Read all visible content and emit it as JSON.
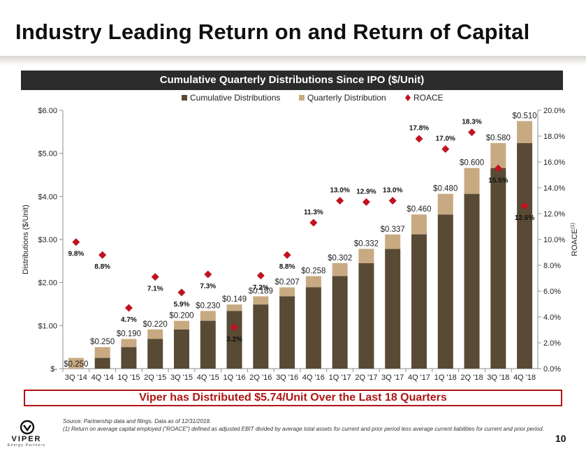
{
  "page": {
    "title": "Industry Leading Return on and Return of Capital",
    "banner": "Cumulative Quarterly Distributions Since IPO ($/Unit)",
    "callout": "Viper has Distributed $5.74/Unit Over the Last 18 Quarters",
    "footnote_source": "Source: Partnership data and filings. Data as of 12/31/2018.",
    "footnote_1": "(1)     Return on average capital employed (“ROACE”) defined as adjusted EBIT divided by average total assets for current and prior period less average current liabilities for current and prior period.",
    "page_number": "10",
    "logo_text": "VIPER",
    "logo_subtext": "Energy Partners"
  },
  "colors": {
    "cumulative": "#584a34",
    "quarterly": "#c8aa82",
    "roace": "#c0121f",
    "banner": "#2b2b2b",
    "callout": "#b01515"
  },
  "chart_data": {
    "type": "bar",
    "categories": [
      "3Q '14",
      "4Q '14",
      "1Q '15",
      "2Q '15",
      "3Q '15",
      "4Q '15",
      "1Q '16",
      "2Q '16",
      "3Q '16",
      "4Q '16",
      "1Q '17",
      "2Q '17",
      "3Q '17",
      "4Q '17",
      "1Q '18",
      "2Q '18",
      "3Q '18",
      "4Q '18"
    ],
    "series": [
      {
        "name": "Cumulative Distributions",
        "values": [
          0,
          0.25,
          0.5,
          0.69,
          0.91,
          1.11,
          1.34,
          1.49,
          1.68,
          1.89,
          2.15,
          2.45,
          2.78,
          3.12,
          3.58,
          4.06,
          4.66,
          5.24
        ]
      },
      {
        "name": "Quarterly Distribution",
        "values": [
          0.25,
          0.25,
          0.19,
          0.22,
          0.2,
          0.23,
          0.149,
          0.189,
          0.207,
          0.258,
          0.302,
          0.332,
          0.337,
          0.46,
          0.48,
          0.6,
          0.58,
          0.51
        ]
      },
      {
        "name": "ROACE",
        "axis": "right",
        "values": [
          9.8,
          8.8,
          4.7,
          7.1,
          5.9,
          7.3,
          3.2,
          7.2,
          8.8,
          11.3,
          13.0,
          12.9,
          13.0,
          17.8,
          17.0,
          18.3,
          15.5,
          12.6
        ]
      }
    ],
    "bar_labels": [
      "$0.250",
      "$0.250",
      "$0.190",
      "$0.220",
      "$0.200",
      "$0.230",
      "$0.149",
      "$0.189",
      "$0.207",
      "$0.258",
      "$0.302",
      "$0.332",
      "$0.337",
      "$0.460",
      "$0.480",
      "$0.600",
      "$0.580",
      "$0.510"
    ],
    "roace_labels": [
      "9.8%",
      "8.8%",
      "4.7%",
      "7.1%",
      "5.9%",
      "7.3%",
      "3.2%",
      "7.2%",
      "8.8%",
      "11.3%",
      "13.0%",
      "12.9%",
      "13.0%",
      "17.8%",
      "17.0%",
      "18.3%",
      "15.5%",
      "12.6%"
    ],
    "ylabel": "Distributions ($/Unit)",
    "y2label": "ROACE(1)",
    "ylim": [
      0,
      6
    ],
    "y2lim": [
      0,
      20
    ],
    "yticks": [
      "$-",
      "$1.00",
      "$2.00",
      "$3.00",
      "$4.00",
      "$5.00",
      "$6.00"
    ],
    "y2ticks": [
      "0.0%",
      "2.0%",
      "4.0%",
      "6.0%",
      "8.0%",
      "10.0%",
      "12.0%",
      "14.0%",
      "16.0%",
      "18.0%",
      "20.0%"
    ],
    "legend_position": "top",
    "grid": false
  }
}
